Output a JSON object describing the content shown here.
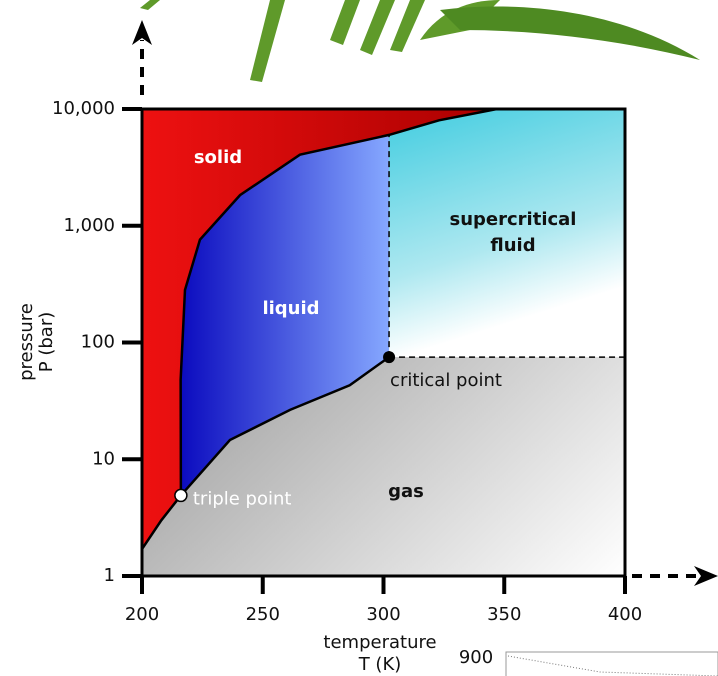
{
  "chart_data": {
    "type": "phase",
    "xlabel": [
      "temperature",
      "T (K)"
    ],
    "ylabel": [
      "pressure",
      "P (bar)"
    ],
    "xlim": [
      200,
      400
    ],
    "ylim": [
      1,
      10000
    ],
    "log_y": true,
    "xticks": [
      200,
      250,
      300,
      350,
      400
    ],
    "yticks": [
      1,
      10,
      100,
      {
        "value": 1000,
        "label": "1,000"
      },
      {
        "value": 10000,
        "label": "10,000"
      }
    ],
    "regions": {
      "solid": "solid",
      "liquid": "liquid",
      "supercritical": [
        "supercritical",
        "fluid"
      ],
      "gas": "gas"
    },
    "sublimation": {
      "x": [
        200,
        208,
        216.1
      ],
      "values": [
        1.7,
        3.0,
        4.9
      ]
    },
    "melting": {
      "x": [
        216.1,
        216,
        217.8,
        224,
        240.6,
        265.4,
        302.3,
        323,
        347
      ],
      "values": [
        4.9,
        48,
        282,
        760,
        1830,
        4060,
        6000,
        8000,
        10000
      ]
    },
    "vaporization": {
      "x": [
        216.1,
        236.4,
        261.3,
        286,
        302.3
      ],
      "values": [
        4.9,
        14.6,
        26.5,
        43,
        75
      ]
    },
    "triple_point": {
      "label": "triple point",
      "x": 216.1,
      "y": 4.9
    },
    "critical_point": {
      "label": "critical point",
      "x": 302.3,
      "y": 75
    }
  },
  "fragment_label": "900"
}
